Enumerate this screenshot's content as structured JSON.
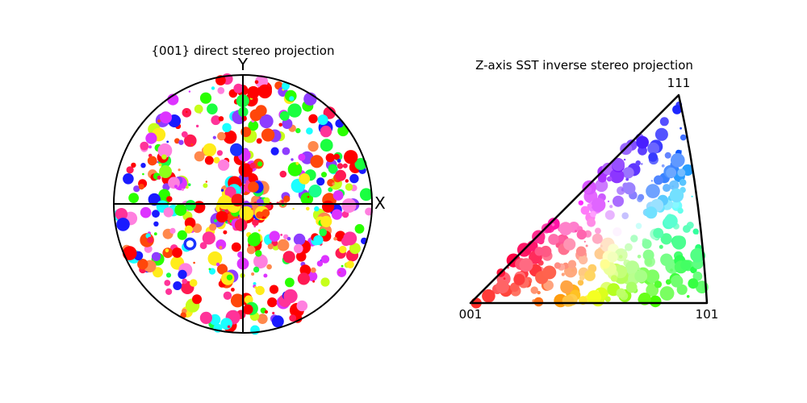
{
  "chart_data": [
    {
      "type": "scatter",
      "title": "{001} direct stereo projection",
      "axis_labels": {
        "x": "X",
        "y": "Y"
      },
      "xlim": [
        -1,
        1
      ],
      "ylim": [
        -1,
        1
      ],
      "point_count": 520,
      "coloring": "IPF (Z-axis) color per orientation",
      "sample_points": [
        {
          "x": -0.04,
          "y": 0.03,
          "color": "#ff1a1a"
        },
        {
          "x": -0.05,
          "y": 0.42,
          "color": "#1a33ff"
        },
        {
          "x": -0.41,
          "y": -0.31,
          "color": "#1a33ff"
        },
        {
          "x": 0.56,
          "y": 0.1,
          "color": "#1aff8c"
        },
        {
          "x": -0.6,
          "y": 0.25,
          "color": "#8cff1a"
        }
      ],
      "circle_shown": true,
      "crosshair_shown": true
    },
    {
      "type": "scatter",
      "title": "Z-axis SST inverse stereo projection",
      "vertices": [
        "001",
        "111",
        "101"
      ],
      "point_count": 300,
      "coloring": "IPF (Z-axis) color per orientation",
      "sample_points": [
        {
          "pole": "near 001",
          "color": "#ff1a1a"
        },
        {
          "pole": "near 111",
          "color": "#1a1aff"
        },
        {
          "pole": "near 101",
          "color": "#1aff4d"
        }
      ]
    }
  ]
}
